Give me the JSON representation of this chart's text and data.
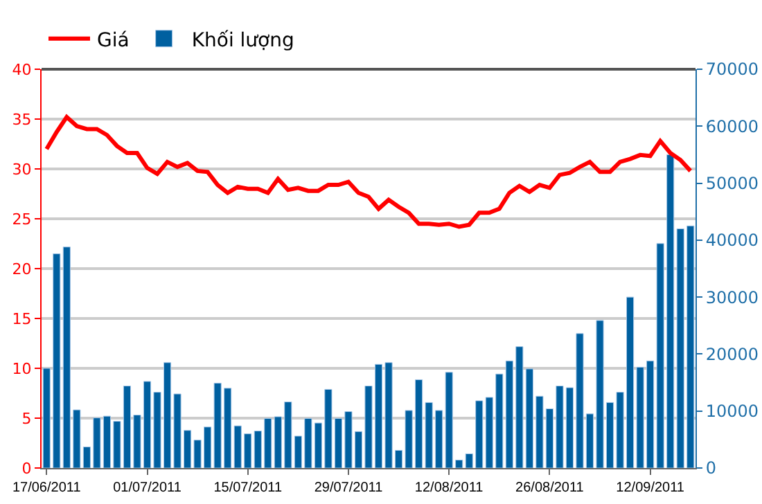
{
  "chart_data": {
    "type": "bar",
    "categories": [
      "17/06/2011",
      null,
      null,
      null,
      null,
      null,
      null,
      null,
      null,
      null,
      "01/07/2011",
      null,
      null,
      null,
      null,
      null,
      null,
      null,
      null,
      null,
      "15/07/2011",
      null,
      null,
      null,
      null,
      null,
      null,
      null,
      null,
      null,
      "29/07/2011",
      null,
      null,
      null,
      null,
      null,
      null,
      null,
      null,
      null,
      "12/08/2011",
      null,
      null,
      null,
      null,
      null,
      null,
      null,
      null,
      null,
      "26/08/2011",
      null,
      null,
      null,
      null,
      null,
      null,
      null,
      null,
      null,
      "12/09/2011",
      null,
      null,
      null,
      null
    ],
    "series": [
      {
        "name": "Giá",
        "type": "line",
        "color": "#ff0000",
        "values": [
          32.0,
          33.7,
          35.2,
          34.3,
          34.0,
          34.0,
          33.4,
          32.3,
          31.6,
          31.6,
          30.1,
          29.5,
          30.7,
          30.2,
          30.6,
          29.8,
          29.7,
          28.4,
          27.6,
          28.2,
          28.0,
          28.0,
          27.6,
          29.0,
          27.9,
          28.1,
          27.8,
          27.8,
          28.4,
          28.4,
          28.7,
          27.6,
          27.2,
          26.0,
          26.9,
          26.2,
          25.6,
          24.5,
          24.5,
          24.4,
          24.5,
          24.2,
          24.4,
          25.6,
          25.6,
          26.0,
          27.6,
          28.3,
          27.7,
          28.4,
          28.1,
          29.4,
          29.6,
          30.2,
          30.7,
          29.7,
          29.7,
          30.7,
          31.0,
          31.4,
          31.3,
          32.8,
          31.6,
          30.9,
          29.8
        ]
      },
      {
        "name": "Khối lượng",
        "axis": "y2",
        "color": "#0060a0",
        "values": [
          17500,
          37600,
          38800,
          10200,
          3700,
          8800,
          9100,
          8200,
          14400,
          9300,
          15200,
          13300,
          18500,
          13000,
          6600,
          4900,
          7200,
          14900,
          14000,
          7400,
          6000,
          6500,
          8700,
          9000,
          11600,
          5600,
          8700,
          7900,
          13800,
          8700,
          9900,
          6400,
          14400,
          18200,
          18500,
          3100,
          10100,
          15500,
          11500,
          10100,
          16800,
          1400,
          2500,
          11800,
          12400,
          16500,
          18800,
          21300,
          17400,
          12600,
          10400,
          14400,
          14100,
          23600,
          9500,
          25900,
          11500,
          13300,
          30000,
          17700,
          18800,
          39400,
          55000,
          42000,
          42500
        ]
      }
    ],
    "ylim": [
      0,
      40
    ],
    "yticks": [
      0,
      5,
      10,
      15,
      20,
      25,
      30,
      35,
      40
    ],
    "y2lim": [
      0,
      70000
    ],
    "y2ticks": [
      0,
      10000,
      20000,
      30000,
      40000,
      50000,
      60000,
      70000
    ],
    "grid": "y",
    "legend": "top left"
  }
}
